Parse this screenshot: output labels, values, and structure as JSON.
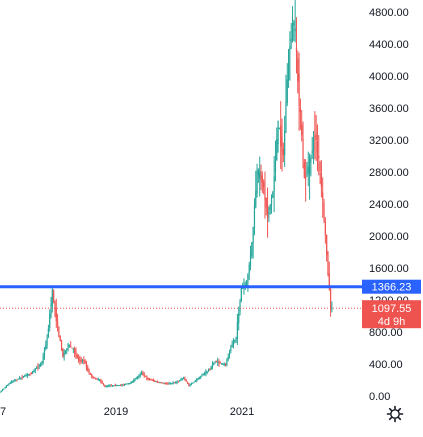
{
  "chart_data": {
    "type": "candlestick",
    "y_axis": {
      "position": "right",
      "ticks": [
        "4800.00",
        "4400.00",
        "4000.00",
        "3600.00",
        "3200.00",
        "2800.00",
        "2400.00",
        "2000.00",
        "1600.00",
        "1200.00",
        "800.00",
        "400.00",
        "0.00"
      ],
      "tick_values": [
        4800,
        4400,
        4000,
        3600,
        3200,
        2800,
        2400,
        2000,
        1600,
        1200,
        800,
        400,
        0
      ],
      "range": [
        0,
        4800
      ]
    },
    "x_axis": {
      "ticks": [
        "7",
        "2019",
        "2021"
      ],
      "range": [
        "2017-01",
        "2022-12"
      ]
    },
    "horizontal_line": {
      "value": 1366.23,
      "label": "1366.23",
      "color": "#2962ff"
    },
    "current_price": {
      "value": 1097.55,
      "label": "1097.55",
      "countdown": "4d 9h",
      "color": "#ef5350"
    },
    "up_color": "#26a69a",
    "down_color": "#ef5350",
    "grid": false,
    "price_path_approx": [
      [
        "2017-01",
        10
      ],
      [
        "2017-03",
        50
      ],
      [
        "2017-05",
        170
      ],
      [
        "2017-07",
        230
      ],
      [
        "2017-09",
        290
      ],
      [
        "2017-11",
        420
      ],
      [
        "2017-12",
        720
      ],
      [
        "2018-01",
        1300
      ],
      [
        "2018-02",
        850
      ],
      [
        "2018-03",
        500
      ],
      [
        "2018-04",
        640
      ],
      [
        "2018-05",
        580
      ],
      [
        "2018-06",
        450
      ],
      [
        "2018-07",
        440
      ],
      [
        "2018-08",
        280
      ],
      [
        "2018-09",
        220
      ],
      [
        "2018-10",
        200
      ],
      [
        "2018-11",
        115
      ],
      [
        "2018-12",
        130
      ],
      [
        "2019-02",
        135
      ],
      [
        "2019-04",
        165
      ],
      [
        "2019-06",
        290
      ],
      [
        "2019-07",
        220
      ],
      [
        "2019-09",
        175
      ],
      [
        "2019-11",
        150
      ],
      [
        "2020-01",
        180
      ],
      [
        "2020-02",
        230
      ],
      [
        "2020-03",
        130
      ],
      [
        "2020-05",
        230
      ],
      [
        "2020-07",
        340
      ],
      [
        "2020-08",
        430
      ],
      [
        "2020-10",
        390
      ],
      [
        "2020-11",
        610
      ],
      [
        "2020-12",
        740
      ],
      [
        "2021-01",
        1350
      ],
      [
        "2021-02",
        1400
      ],
      [
        "2021-03",
        1900
      ],
      [
        "2021-04",
        2800
      ],
      [
        "2021-05",
        2700
      ],
      [
        "2021-06",
        2250
      ],
      [
        "2021-07",
        2550
      ],
      [
        "2021-08",
        3400
      ],
      [
        "2021-09",
        3000
      ],
      [
        "2021-10",
        4300
      ],
      [
        "2021-11",
        4700
      ],
      [
        "2021-12",
        3700
      ],
      [
        "2022-01",
        2700
      ],
      [
        "2022-02",
        2900
      ],
      [
        "2022-03",
        3300
      ],
      [
        "2022-04",
        2800
      ],
      [
        "2022-05",
        2000
      ],
      [
        "2022-06",
        1097.55
      ]
    ]
  },
  "settings_icon": "gear-icon"
}
